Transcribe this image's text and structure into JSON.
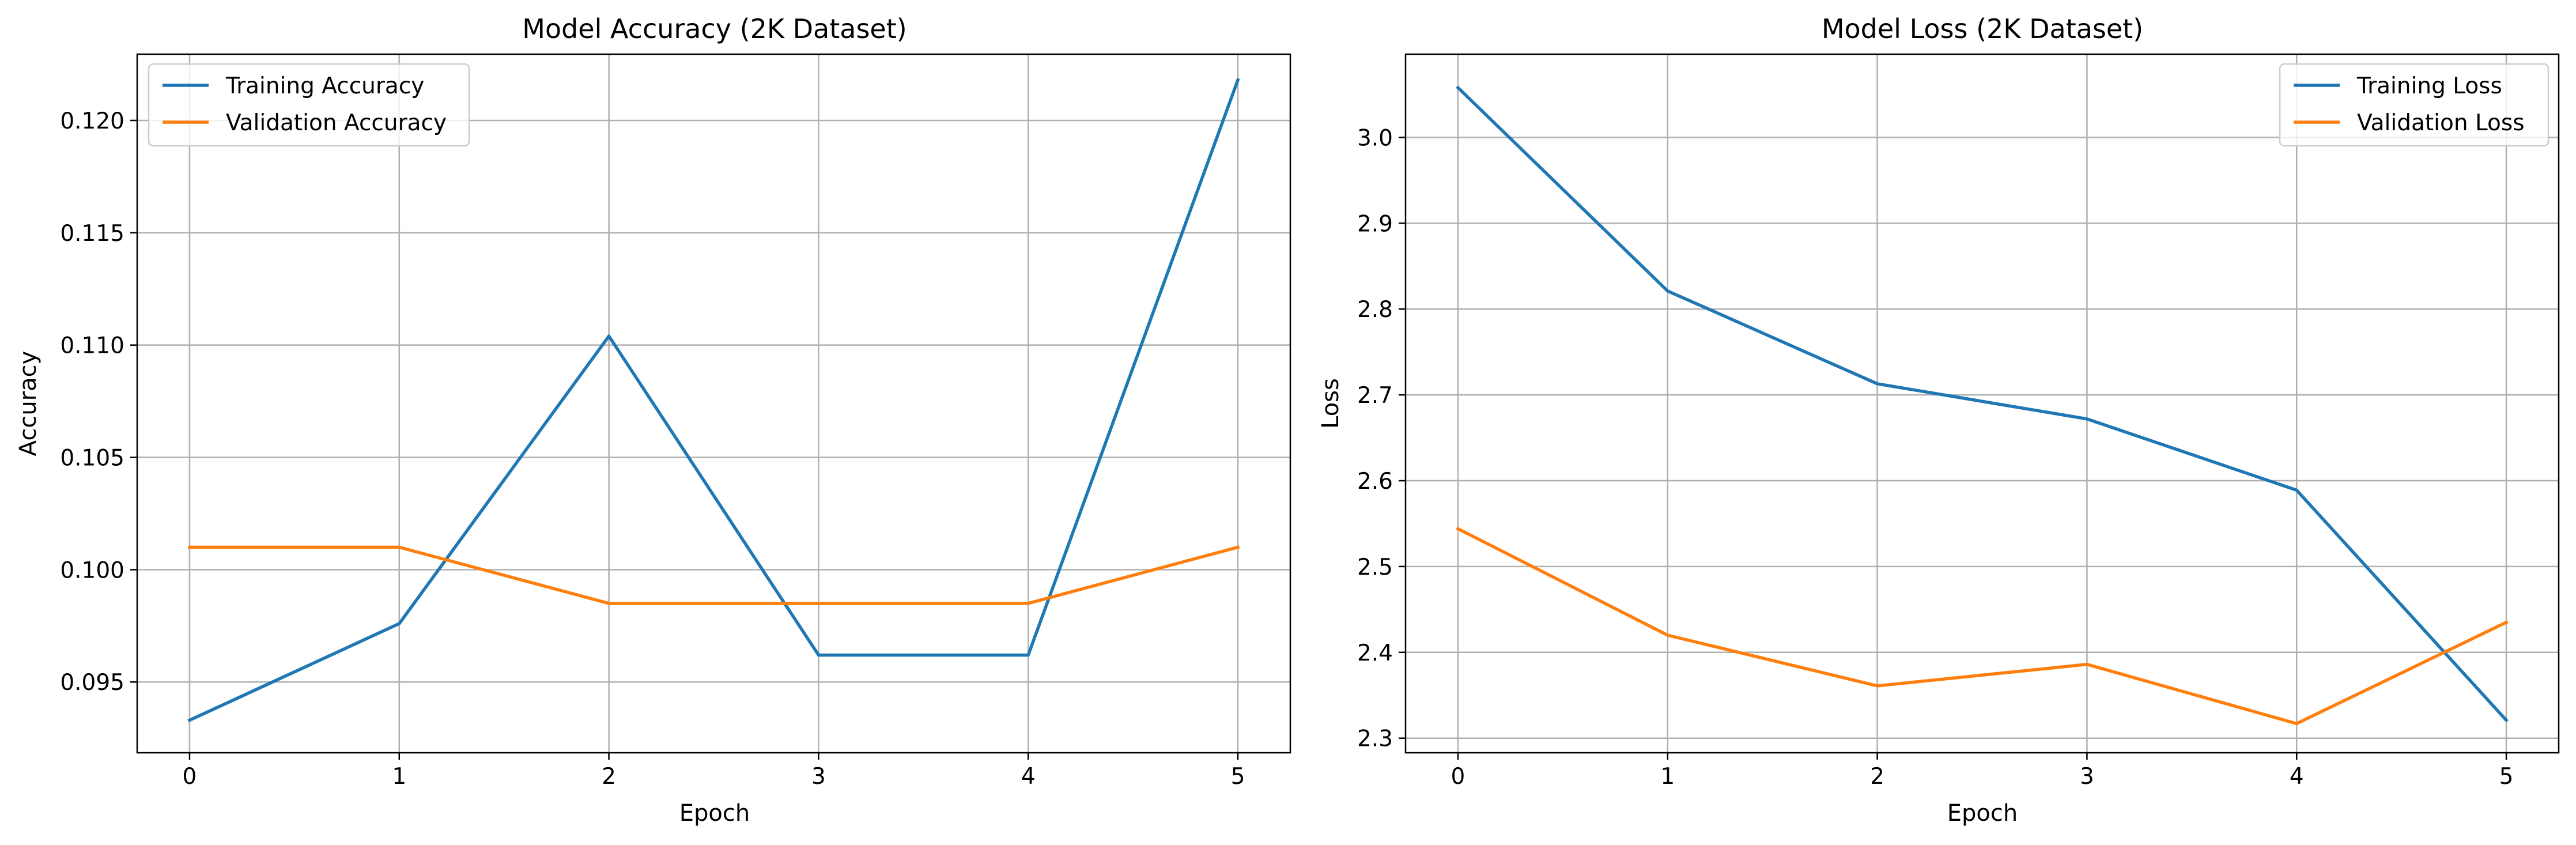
{
  "chart_data": [
    {
      "type": "line",
      "title": "Model Accuracy (2K Dataset)",
      "xlabel": "Epoch",
      "ylabel": "Accuracy",
      "x": [
        0,
        1,
        2,
        3,
        4,
        5
      ],
      "xticks": [
        "0",
        "1",
        "2",
        "3",
        "4",
        "5"
      ],
      "yticks": [
        "0.095",
        "0.100",
        "0.105",
        "0.110",
        "0.115",
        "0.120"
      ],
      "ytick_values": [
        0.095,
        0.1,
        0.105,
        0.11,
        0.115,
        0.12
      ],
      "xlim": [
        -0.25,
        5.25
      ],
      "ylim": [
        0.09185,
        0.12295
      ],
      "grid": true,
      "legend_position": "top-left",
      "series": [
        {
          "name": "Training Accuracy",
          "color": "#1f77b4",
          "values": [
            0.0933,
            0.0976,
            0.1104,
            0.0962,
            0.0962,
            0.1218
          ]
        },
        {
          "name": "Validation Accuracy",
          "color": "#ff7f0e",
          "values": [
            0.101,
            0.101,
            0.0985,
            0.0985,
            0.0985,
            0.101
          ]
        }
      ]
    },
    {
      "type": "line",
      "title": "Model Loss (2K Dataset)",
      "xlabel": "Epoch",
      "ylabel": "Loss",
      "x": [
        0,
        1,
        2,
        3,
        4,
        5
      ],
      "xticks": [
        "0",
        "1",
        "2",
        "3",
        "4",
        "5"
      ],
      "yticks": [
        "2.3",
        "2.4",
        "2.5",
        "2.6",
        "2.7",
        "2.8",
        "2.9",
        "3.0"
      ],
      "ytick_values": [
        2.3,
        2.4,
        2.5,
        2.6,
        2.7,
        2.8,
        2.9,
        3.0
      ],
      "xlim": [
        -0.25,
        5.25
      ],
      "ylim": [
        2.283,
        3.097
      ],
      "grid": true,
      "legend_position": "top-right",
      "series": [
        {
          "name": "Training Loss",
          "color": "#1f77b4",
          "values": [
            3.058,
            2.821,
            2.713,
            2.672,
            2.589,
            2.321
          ]
        },
        {
          "name": "Validation Loss",
          "color": "#ff7f0e",
          "values": [
            2.544,
            2.42,
            2.361,
            2.386,
            2.317,
            2.435
          ]
        }
      ]
    }
  ]
}
